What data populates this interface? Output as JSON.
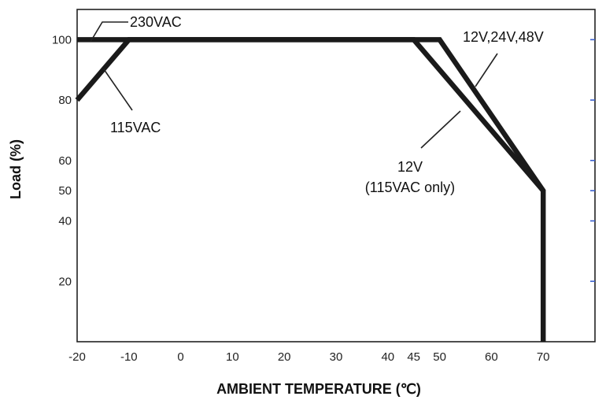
{
  "chart_data": {
    "type": "line",
    "xlabel": "AMBIENT TEMPERATURE (℃)",
    "ylabel": "Load (%)",
    "x_ticks": [
      -20,
      -10,
      0,
      10,
      20,
      30,
      40,
      45,
      50,
      60,
      70
    ],
    "y_ticks": [
      20,
      40,
      50,
      60,
      80,
      100
    ],
    "xlim": [
      -20,
      80
    ],
    "ylim": [
      0,
      110
    ],
    "grid": false,
    "series": [
      {
        "name": "230VAC",
        "x": [
          -20,
          50,
          70,
          70
        ],
        "y": [
          100,
          100,
          50,
          0
        ]
      },
      {
        "name": "115VAC",
        "x": [
          -20,
          -10,
          45,
          70
        ],
        "y": [
          80,
          100,
          100,
          50
        ]
      }
    ],
    "annotations": [
      {
        "id": "230vac",
        "lines": [
          "230VAC"
        ]
      },
      {
        "id": "115vac",
        "lines": [
          "115VAC"
        ]
      },
      {
        "id": "12v-24v-48v",
        "lines": [
          "12V,24V,48V"
        ]
      },
      {
        "id": "12v-115vac-only",
        "lines": [
          "12V",
          "(115VAC only)"
        ]
      }
    ]
  }
}
